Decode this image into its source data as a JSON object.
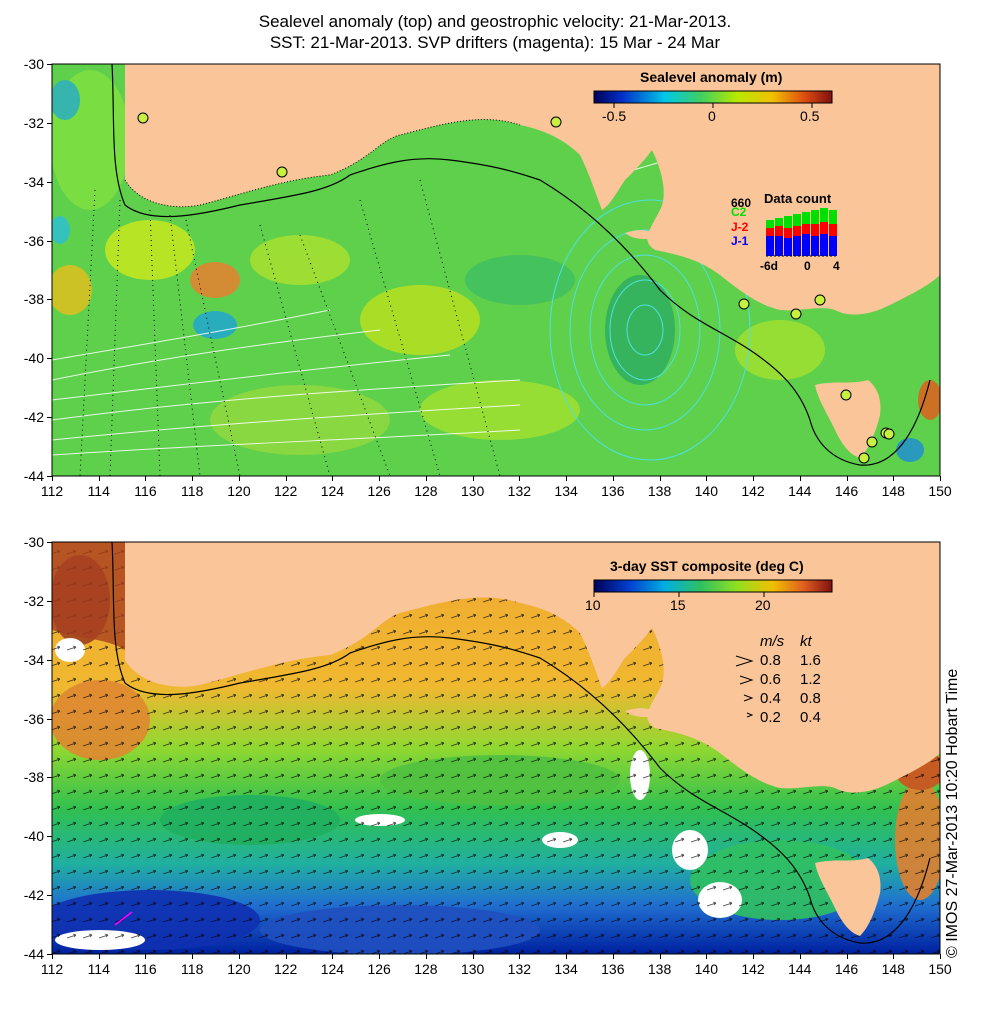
{
  "title_line1": "Sealevel anomaly (top) and geostrophic velocity: 21-Mar-2013.",
  "title_line2": "SST: 21-Mar-2013. SVP drifters (magenta): 15 Mar - 24 Mar",
  "copyright": "© IMOS 27-Mar-2013 10:20 Hobart Time",
  "colors": {
    "land": "#f9c599",
    "frame": "#000000",
    "cyan_contour": "#4fe0e0",
    "white_contour": "#ffffff",
    "drifter": "#ff00ff"
  },
  "top_map": {
    "x_ticks": [
      "112",
      "114",
      "116",
      "118",
      "120",
      "122",
      "124",
      "126",
      "128",
      "130",
      "132",
      "134",
      "136",
      "138",
      "140",
      "142",
      "144",
      "146",
      "148",
      "150"
    ],
    "y_ticks": [
      "-30",
      "-32",
      "-34",
      "-36",
      "-38",
      "-40",
      "-42",
      "-44"
    ],
    "colorbar": {
      "title": "Sealevel anomaly (m)",
      "labels": [
        "-0.5",
        "0",
        "0.5"
      ],
      "range": [
        -0.6,
        0.6
      ]
    },
    "data_count": {
      "title": "Data count",
      "max_label": "660",
      "satellites": [
        "C2",
        "J-2",
        "J-1"
      ],
      "sat_colors": [
        "#00e000",
        "#ff0000",
        "#0000ff"
      ],
      "x_labels": [
        "-6d",
        "0",
        "4"
      ]
    }
  },
  "bottom_map": {
    "x_ticks": [
      "112",
      "114",
      "116",
      "118",
      "120",
      "122",
      "124",
      "126",
      "128",
      "130",
      "132",
      "134",
      "136",
      "138",
      "140",
      "142",
      "144",
      "146",
      "148",
      "150"
    ],
    "y_ticks": [
      "-30",
      "-32",
      "-34",
      "-36",
      "-38",
      "-40",
      "-42",
      "-44"
    ],
    "colorbar": {
      "title": "3-day SST composite (deg C)",
      "labels": [
        "10",
        "15",
        "20"
      ],
      "range": [
        10,
        24
      ]
    },
    "velocity_legend": {
      "header_ms": "m/s",
      "header_kt": "kt",
      "rows": [
        {
          "ms": "0.8",
          "kt": "1.6"
        },
        {
          "ms": "0.6",
          "kt": "1.2"
        },
        {
          "ms": "0.4",
          "kt": "0.8"
        },
        {
          "ms": "0.2",
          "kt": "0.4"
        }
      ]
    }
  }
}
